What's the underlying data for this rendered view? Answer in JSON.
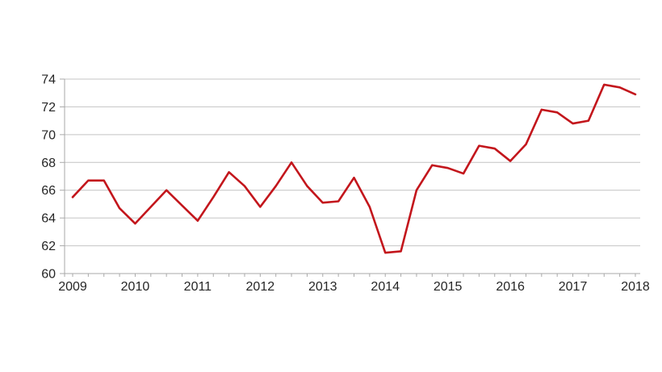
{
  "page": {
    "background": "#ffffff"
  },
  "chart_data": {
    "type": "line",
    "title": "",
    "xlabel": "",
    "ylabel": "",
    "grid": true,
    "legend_position": "none",
    "x_axis": {
      "frequency": "quarterly",
      "start": "2009 Q1",
      "end": "2018 Q1",
      "tick_labels": [
        "2009",
        "2010",
        "2011",
        "2012",
        "2013",
        "2014",
        "2015",
        "2016",
        "2017",
        "2018"
      ],
      "minor_ticks_per_year": 4
    },
    "y_axis": {
      "ticks": [
        60,
        62,
        64,
        66,
        68,
        70,
        72,
        74
      ],
      "range": [
        60,
        74
      ]
    },
    "series": [
      {
        "color": "#C3161C",
        "values": [
          65.5,
          66.7,
          66.7,
          64.7,
          63.6,
          64.8,
          66.0,
          64.9,
          63.8,
          65.5,
          67.3,
          66.3,
          64.8,
          66.3,
          68.0,
          66.3,
          65.1,
          65.2,
          66.9,
          64.8,
          61.5,
          61.6,
          66.0,
          67.8,
          67.6,
          67.2,
          69.2,
          69.0,
          68.1,
          69.3,
          71.8,
          71.6,
          70.8,
          71.0,
          73.6,
          73.4,
          72.9
        ]
      }
    ],
    "colors": {
      "line": "#C3161C",
      "gridline": "#C4C4C4",
      "axis": "#A9A9A9",
      "tick_text": "#262626"
    }
  }
}
